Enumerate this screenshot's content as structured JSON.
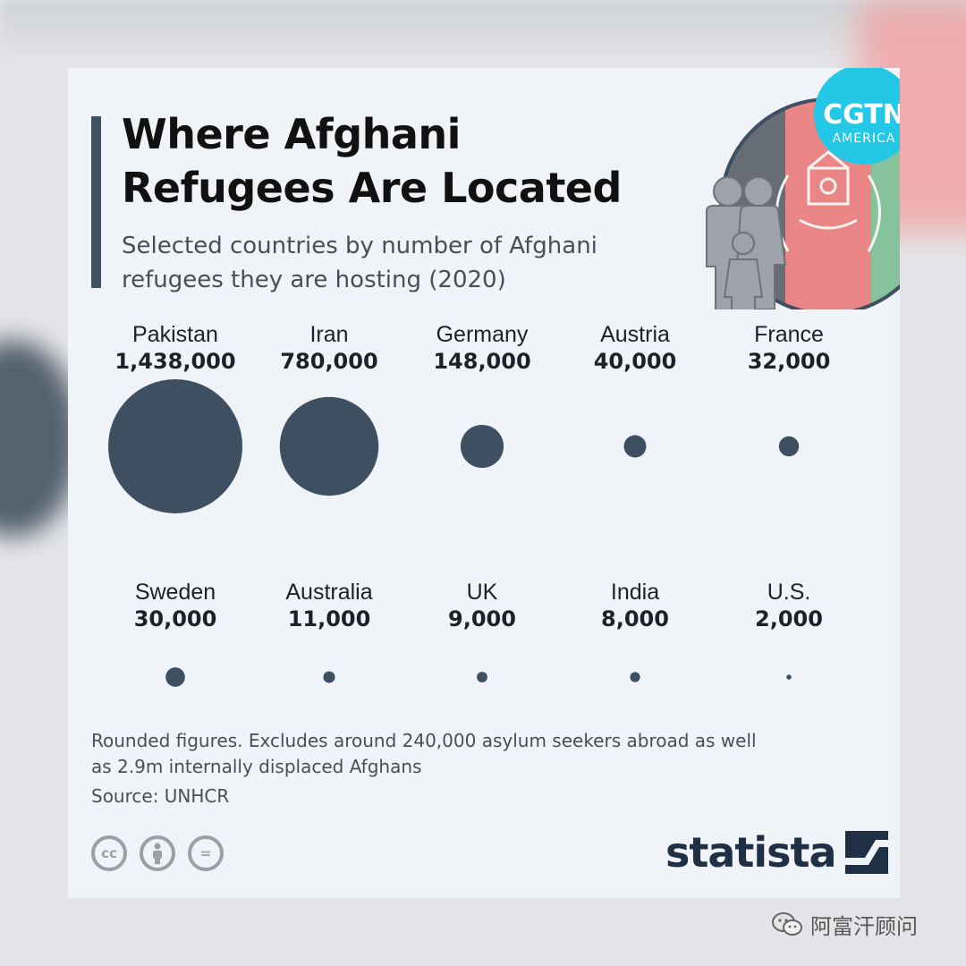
{
  "header": {
    "title": "Where Afghani Refugees Are Located",
    "subtitle": "Selected countries by number of Afghani refugees they are hosting (2020)"
  },
  "logo": {
    "name": "CGTN",
    "sub": "AMERICA",
    "icon": "cgtn-logo-with-afghan-flag-and-family-icon"
  },
  "chart_data": {
    "type": "bubble",
    "title": "Where Afghani Refugees Are Located",
    "subtitle": "Selected countries by number of Afghani refugees they are hosting (2020)",
    "categories": [
      "Pakistan",
      "Iran",
      "Germany",
      "Austria",
      "France",
      "Sweden",
      "Australia",
      "UK",
      "India",
      "U.S."
    ],
    "value_labels": [
      "1,438,000",
      "780,000",
      "148,000",
      "40,000",
      "32,000",
      "30,000",
      "11,000",
      "9,000",
      "8,000",
      "2,000"
    ],
    "values": [
      1438000,
      780000,
      148000,
      40000,
      32000,
      30000,
      11000,
      9000,
      8000,
      2000
    ],
    "layout": "grid-2-rows-5-columns",
    "bubble_color": "#3f4f62"
  },
  "footer": {
    "note": "Rounded figures. Excludes around 240,000 asylum seekers abroad as well as 2.9m internally displaced Afghans",
    "source": "Source: UNHCR",
    "license_icons": [
      "cc",
      "by",
      "nd"
    ],
    "license_labels": {
      "cc": "cc",
      "nd": "="
    },
    "brand": "statista"
  },
  "watermark": {
    "text": "阿富汗顾问",
    "icon": "wechat-icon"
  }
}
